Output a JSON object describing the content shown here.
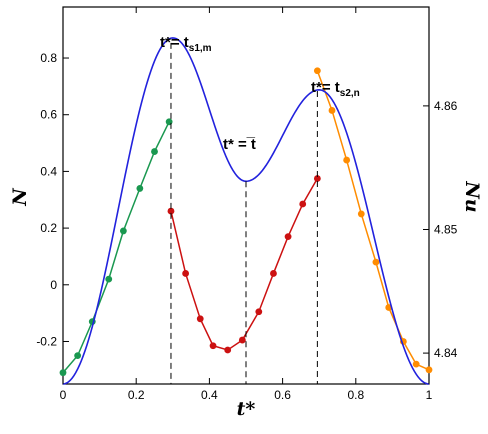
{
  "chart_data": {
    "type": "line",
    "x": {
      "label": "t*",
      "range": [
        0,
        1
      ],
      "ticks": [
        0,
        0.2,
        0.4,
        0.6,
        0.8,
        1
      ],
      "tick_labels": [
        "0",
        "0.2",
        "0.4",
        "0.6",
        "0.8",
        "1"
      ]
    },
    "y_left": {
      "label": "N",
      "range": [
        -0.35,
        0.98
      ],
      "ticks": [
        -0.2,
        0,
        0.2,
        0.4,
        0.6,
        0.8
      ],
      "tick_labels": [
        "-0.2",
        "0",
        "0.2",
        "0.4",
        "0.6",
        "0.8"
      ]
    },
    "y_right": {
      "label": "Nu",
      "range": [
        4.8375,
        4.868
      ],
      "ticks": [
        4.84,
        4.85,
        4.86
      ],
      "tick_labels": [
        "4.84",
        "4.85",
        "4.86"
      ]
    },
    "series": [
      {
        "axis": "left",
        "color": "#1a9850",
        "markers": true,
        "points": [
          [
            0,
            -0.31
          ],
          [
            0.04,
            -0.25
          ],
          [
            0.08,
            -0.13
          ],
          [
            0.125,
            0.02
          ],
          [
            0.165,
            0.19
          ],
          [
            0.21,
            0.34
          ],
          [
            0.25,
            0.47
          ],
          [
            0.29,
            0.575
          ]
        ]
      },
      {
        "axis": "left",
        "color": "#cc1111",
        "markers": true,
        "points": [
          [
            0.295,
            0.26
          ],
          [
            0.335,
            0.04
          ],
          [
            0.375,
            -0.12
          ],
          [
            0.41,
            -0.215
          ],
          [
            0.45,
            -0.23
          ],
          [
            0.49,
            -0.195
          ],
          [
            0.535,
            -0.095
          ],
          [
            0.575,
            0.04
          ],
          [
            0.615,
            0.17
          ],
          [
            0.655,
            0.285
          ],
          [
            0.695,
            0.375
          ]
        ]
      },
      {
        "axis": "left",
        "color": "#ff8c00",
        "markers": true,
        "points": [
          [
            0.695,
            0.755
          ],
          [
            0.735,
            0.615
          ],
          [
            0.775,
            0.44
          ],
          [
            0.815,
            0.25
          ],
          [
            0.855,
            0.08
          ],
          [
            0.89,
            -0.08
          ],
          [
            0.93,
            -0.2
          ],
          [
            0.965,
            -0.28
          ],
          [
            1.0,
            -0.3
          ]
        ]
      },
      {
        "axis": "right",
        "color": "#2222dd",
        "markers": false,
        "peaks_valleys": [
          [
            0.3,
            4.8655
          ],
          [
            0.5,
            4.8539
          ],
          [
            0.7,
            4.8613
          ]
        ],
        "endpoints": [
          [
            0,
            4.8375
          ],
          [
            1,
            4.8375
          ]
        ]
      }
    ],
    "vertical_markers": [
      {
        "x": 0.295,
        "label_main": "t*= t",
        "label_sub": "s1,m"
      },
      {
        "x": 0.5,
        "label_main": "t* = ̅t",
        "label_sub": ""
      },
      {
        "x": 0.695,
        "label_main": "t*= t",
        "label_sub": "s2,n"
      }
    ]
  }
}
